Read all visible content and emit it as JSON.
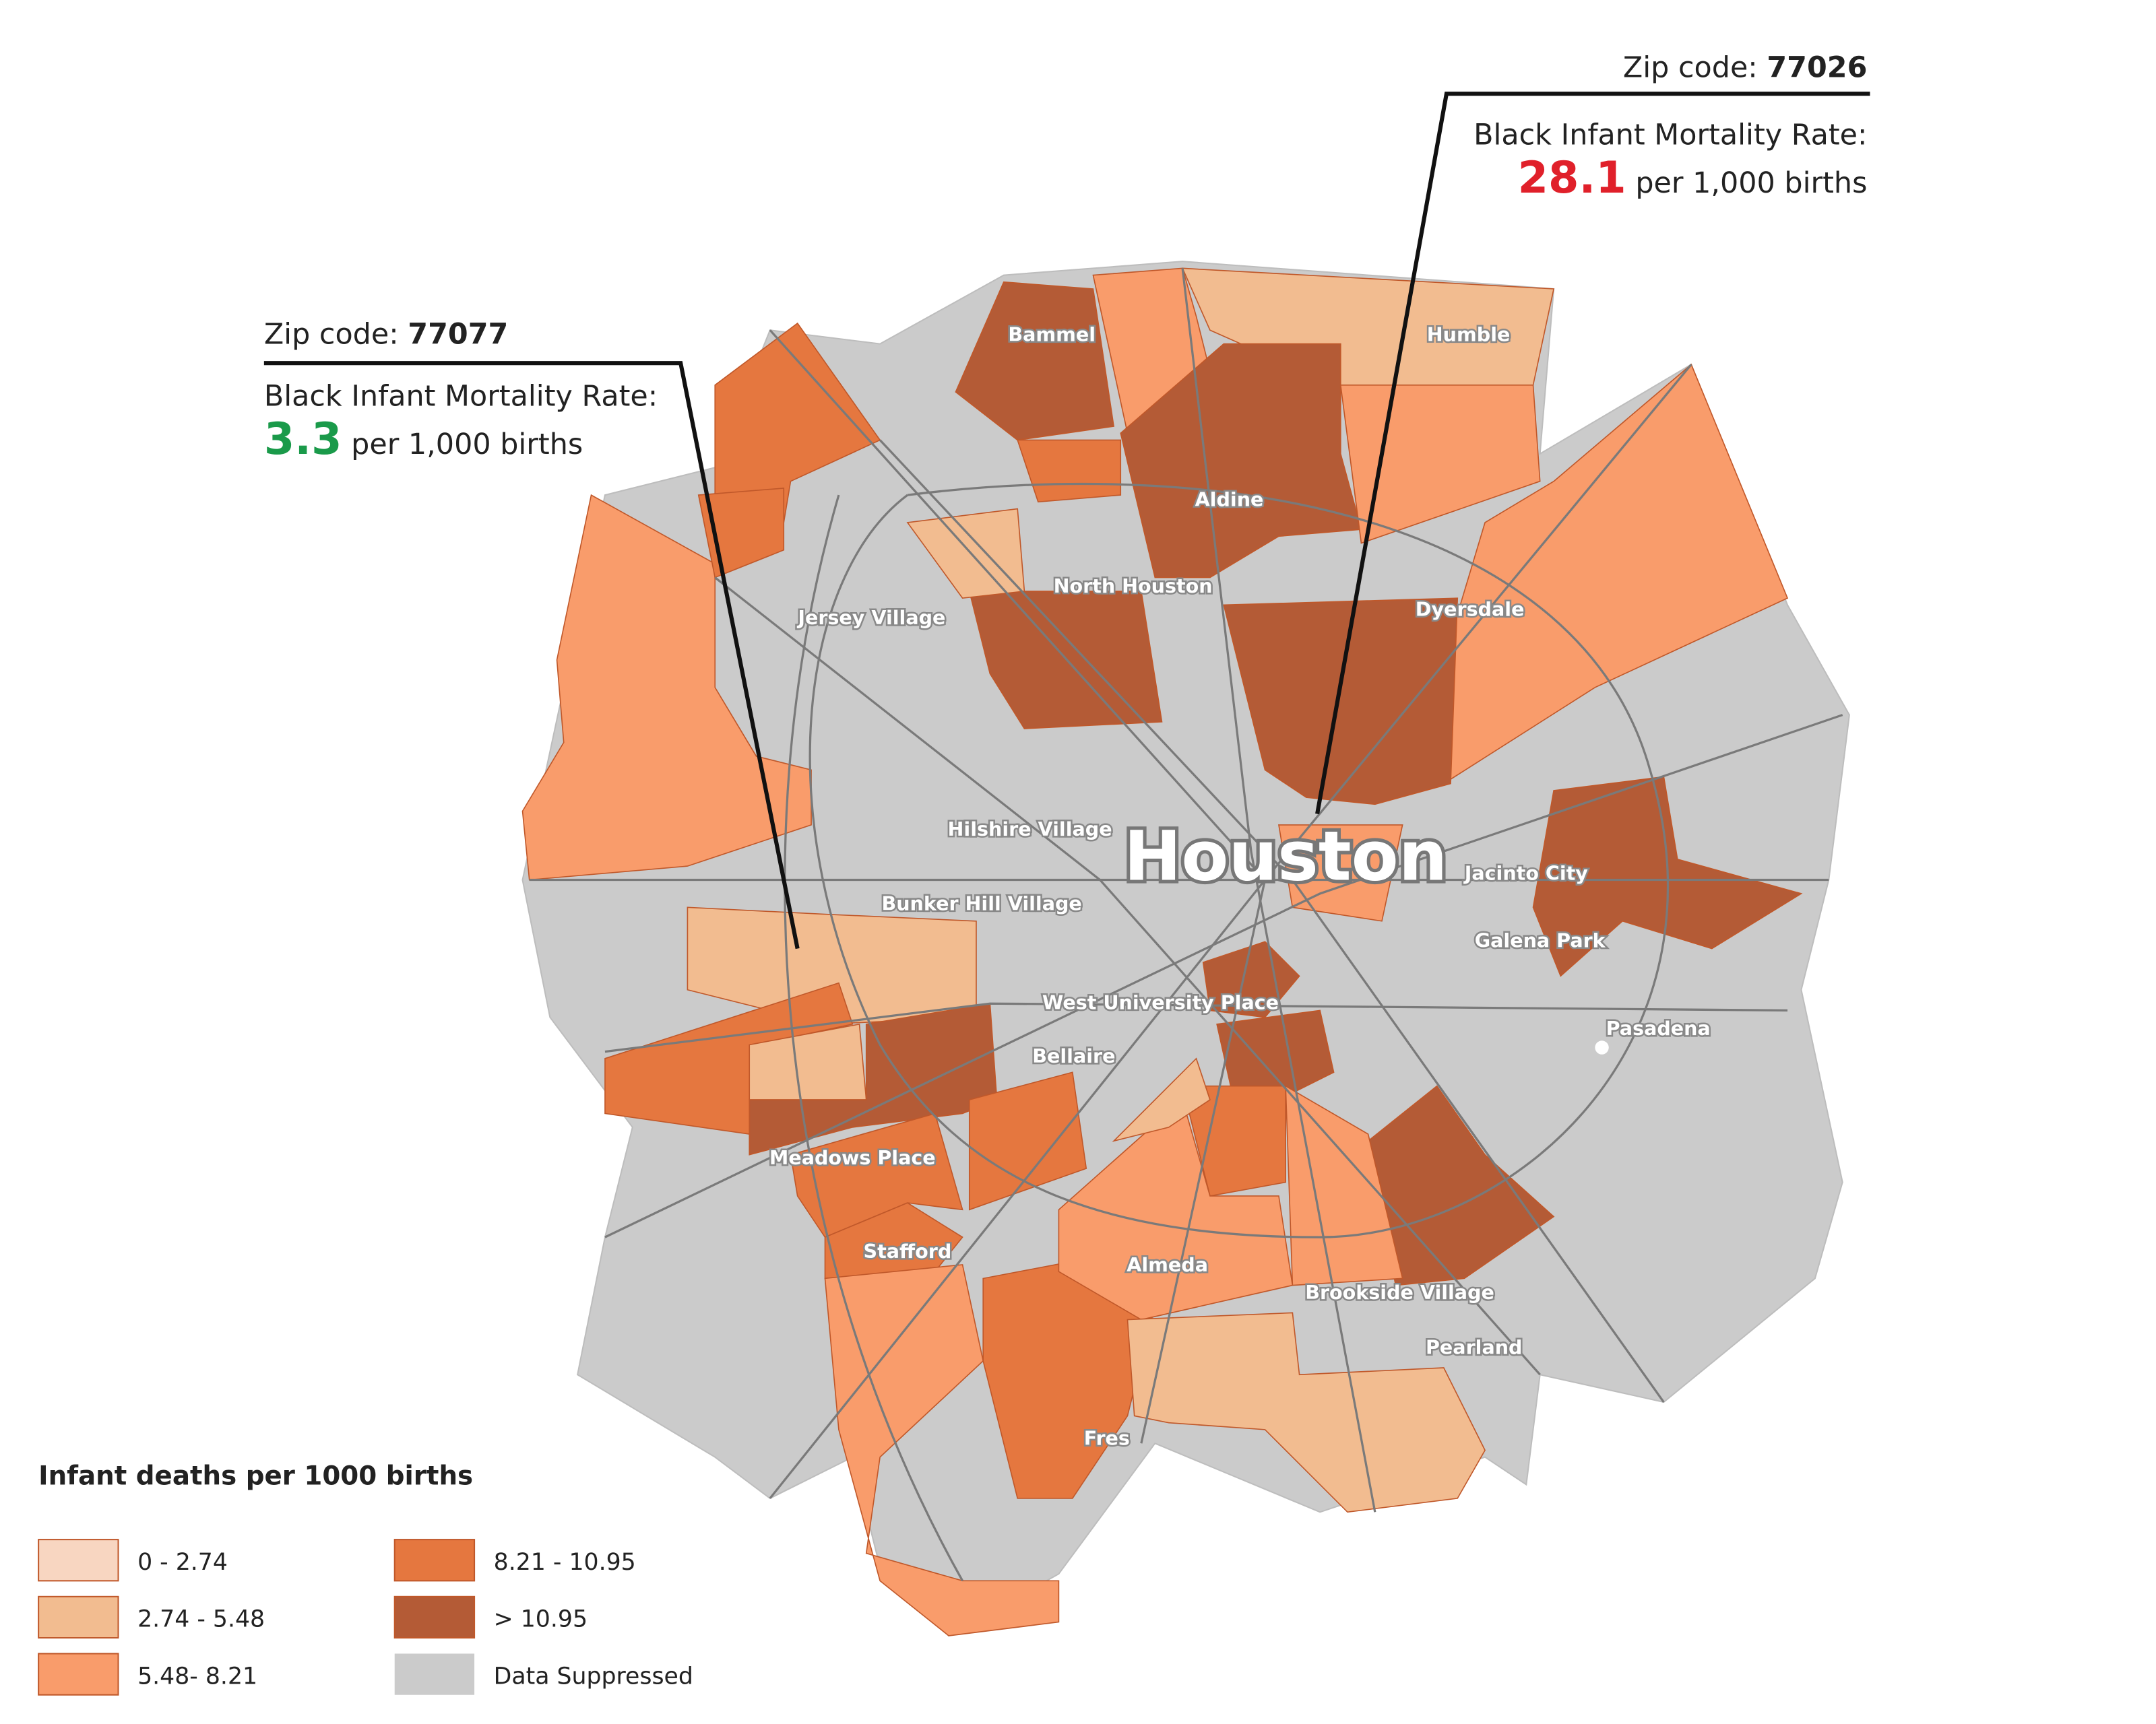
{
  "city": "Houston",
  "places": [
    "Bammel",
    "Humble",
    "Aldine",
    "North Houston",
    "Jersey Village",
    "Dyersdale",
    "Hilshire Village",
    "Jacinto City",
    "Bunker Hill Village",
    "Galena Park",
    "West University Place",
    "Pasadena",
    "Bellaire",
    "Meadows Place",
    "Stafford",
    "Almeda",
    "Brookside Village",
    "Pearland",
    "Fres"
  ],
  "callouts": [
    {
      "zip_label": "Zip code:",
      "zip": "77026",
      "rate_label": "Black Infant Mortality Rate:",
      "rate": "28.1",
      "rate_color": "#e0202a",
      "unit": "per 1,000 births"
    },
    {
      "zip_label": "Zip code:",
      "zip": "77077",
      "rate_label": "Black Infant Mortality Rate:",
      "rate": "3.3",
      "rate_color": "#1a9a4a",
      "unit": "per 1,000 births"
    }
  ],
  "legend": {
    "title": "Infant deaths per 1000 births",
    "items": [
      {
        "label": "0 - 2.74",
        "color": "#f8d6c1"
      },
      {
        "label": "2.74 - 5.48",
        "color": "#f2bc90"
      },
      {
        "label": "5.48- 8.21",
        "color": "#f99c6b"
      },
      {
        "label": "8.21 - 10.95",
        "color": "#e5773f"
      },
      {
        "label": "> 10.95",
        "color": "#b45b36"
      },
      {
        "label": "Data Suppressed",
        "color": "#cbcbcb"
      }
    ]
  }
}
